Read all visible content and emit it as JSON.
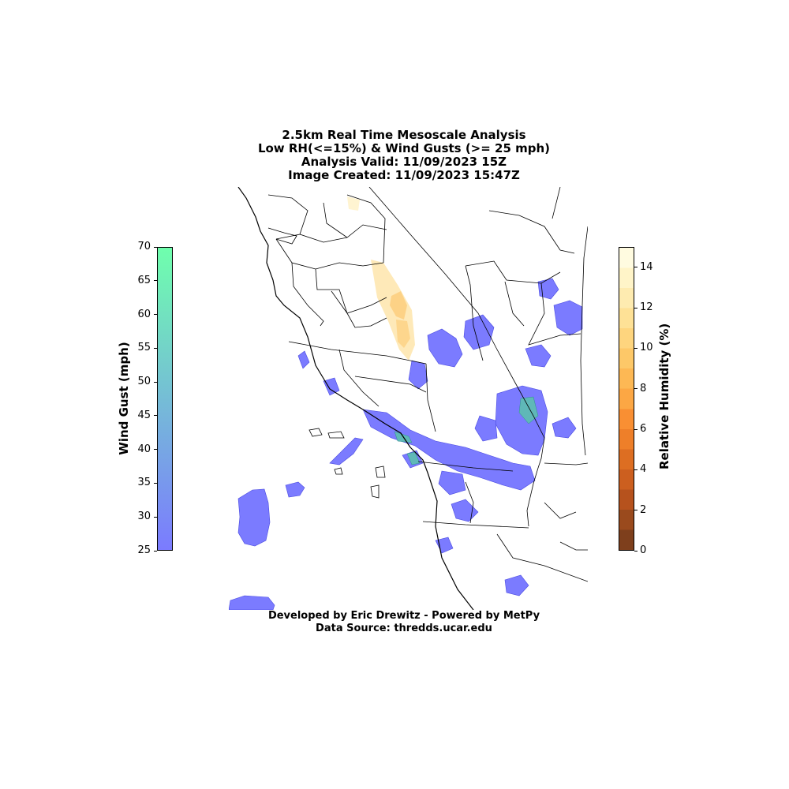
{
  "title_lines": [
    "2.5km Real Time Mesoscale Analysis",
    "Low RH(<=15%) & Wind Gusts (>= 25 mph)",
    "Analysis Valid: 11/09/2023 15Z",
    "Image Created: 11/09/2023 15:47Z"
  ],
  "credits": {
    "line1": "Developed by Eric Drewitz - Powered by MetPy",
    "line2": "Data Source: thredds.ucar.edu"
  },
  "wind_colorbar": {
    "label": "Wind Gust (mph)",
    "min": 25,
    "max": 70,
    "ticks": [
      "25",
      "30",
      "35",
      "40",
      "45",
      "50",
      "55",
      "60",
      "65",
      "70"
    ],
    "color_low": "#7b7bff",
    "color_high": "#6fffad"
  },
  "rh_colorbar": {
    "label": "Relative Humidity (%)",
    "min": 0,
    "max": 15,
    "ticks": [
      "0",
      "2",
      "4",
      "6",
      "8",
      "10",
      "12",
      "14"
    ],
    "colors": [
      "#7e3f1c",
      "#9a4a1d",
      "#b6521d",
      "#cc5f1f",
      "#dd6e22",
      "#ee7f29",
      "#f98f33",
      "#fca744",
      "#fdb854",
      "#fdc868",
      "#fed57e",
      "#fee196",
      "#feebb0",
      "#fff4c8",
      "#fffbe0"
    ]
  },
  "map_colors": {
    "wind": "#7b7bff",
    "wind_outline": "#4a4ae0",
    "wind_strong": "#5fb8b8",
    "rh_dry": "#f9a23a",
    "rh_moist": "#fde2a0"
  }
}
